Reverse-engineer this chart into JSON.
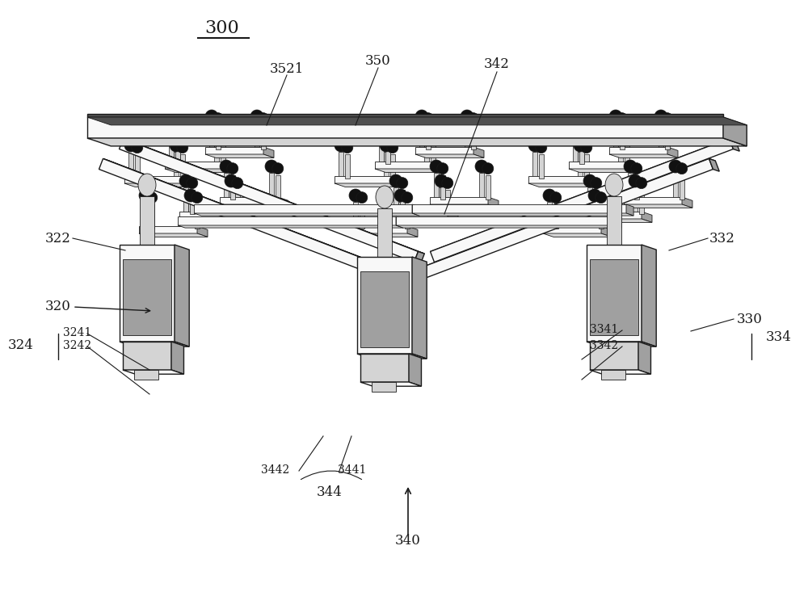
{
  "fig_width": 10.0,
  "fig_height": 7.33,
  "bg_color": "#ffffff",
  "lc": "#1a1a1a",
  "fill_white": "#f8f8f8",
  "fill_light": "#d4d4d4",
  "fill_mid": "#a0a0a0",
  "fill_dark": "#505050",
  "fill_black": "#111111",
  "lw_main": 1.0,
  "lw_thin": 0.6
}
